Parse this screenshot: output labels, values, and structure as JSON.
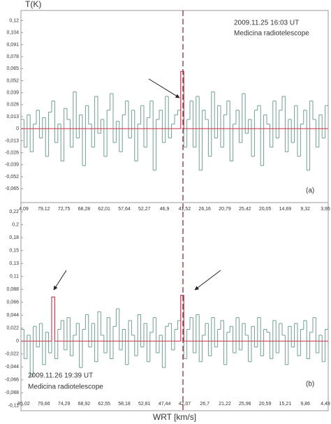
{
  "y_label": "T(K)",
  "x_label": "WRT [km/s]",
  "chart_data": [
    {
      "type": "line",
      "step": true,
      "annotations": [
        "2009.11.25   16:03 UT",
        "Medicina radiotelescope",
        "(a)"
      ],
      "x_labels": [
        "4,09",
        "79,12",
        "72,75",
        "68,28",
        "62,01",
        "57,64",
        "52,27",
        "46,9",
        "41,52",
        "26,16",
        "20,79",
        "25,42",
        "20,05",
        "14,69",
        "9,32",
        "3,95"
      ],
      "xlim": [
        0,
        100
      ],
      "ylim": [
        -0.08,
        0.128
      ],
      "yticks": [
        {
          "value": 0.117,
          "label": "0,12"
        },
        {
          "value": 0.104,
          "label": "0,104"
        },
        {
          "value": 0.091,
          "label": "0,091"
        },
        {
          "value": 0.078,
          "label": "0,078"
        },
        {
          "value": 0.065,
          "label": "0,065"
        },
        {
          "value": 0.052,
          "label": "0,052"
        },
        {
          "value": 0.039,
          "label": "0,039"
        },
        {
          "value": 0.026,
          "label": "0,026"
        },
        {
          "value": 0.013,
          "label": "0,013"
        },
        0,
        {
          "value": -0.013,
          "label": "-0,013"
        },
        {
          "value": -0.026,
          "label": "-0,026"
        },
        {
          "value": -0.039,
          "label": "-0,039"
        },
        {
          "value": -0.052,
          "label": "-0,052"
        },
        {
          "value": -0.065,
          "label": "-0,065"
        }
      ],
      "series": [
        {
          "color": "#6f9e94",
          "values": [
            0.01,
            -0.02,
            0.015,
            -0.025,
            0.005,
            0.02,
            -0.01,
            0.012,
            -0.03,
            0.018,
            0.03,
            -0.015,
            0.005,
            -0.035,
            0.022,
            0.01,
            -0.02,
            0.04,
            -0.01,
            0.015,
            -0.04,
            0.025,
            0.005,
            -0.02,
            0.035,
            -0.005,
            0.01,
            -0.03,
            0.02,
            0.038,
            -0.015,
            0.008,
            -0.025,
            0.015,
            0.03,
            -0.01,
            0.02,
            -0.035,
            0.005,
            0.025,
            -0.02,
            0.012,
            0.03,
            -0.045,
            0.01,
            0.02,
            -0.015,
            0.035,
            -0.01,
            0.005,
            0.015,
            0.02,
            0.062,
            -0.02,
            0.01,
            0.03,
            -0.02,
            0.035,
            -0.045,
            0.02,
            0.01,
            -0.03,
            0.04,
            -0.01,
            0.025,
            -0.02,
            0.015,
            0.03,
            -0.035,
            0.005,
            0.02,
            -0.015,
            0.038,
            -0.005,
            0.01,
            -0.03,
            0.02,
            0.025,
            -0.04,
            0.015,
            0.005,
            -0.02,
            0.03,
            -0.01,
            0.02,
            0.035,
            -0.025,
            0.01,
            -0.015,
            0.025,
            -0.03,
            0.005,
            0.02,
            -0.045,
            0.03,
            0.01,
            -0.02,
            0.015,
            -0.01,
            0.025
          ]
        },
        {
          "color": "#d0405a",
          "x": [
            0,
            52,
            52,
            53,
            53,
            100
          ],
          "values": [
            0,
            0,
            0.062,
            0.062,
            0,
            0
          ]
        }
      ]
    },
    {
      "type": "line",
      "step": true,
      "annotations": [
        "2009.11.26   19:39 UT",
        "Medicina radiotelescope",
        "(b)"
      ],
      "x_labels": [
        "85,02",
        "79,66",
        "74,29",
        "68,92",
        "62,55",
        "58,18",
        "52,81",
        "47,44",
        "42,07",
        "26,7",
        "21,22",
        "25,96",
        "20,59",
        "15,21",
        "9,86",
        "4,49"
      ],
      "xlim": [
        0,
        100
      ],
      "ylim": [
        -0.1185,
        0.2357
      ],
      "yticks": [
        {
          "value": 0.22,
          "label": "0,22"
        },
        {
          "value": 0.198,
          "label": "0,2"
        },
        {
          "value": 0.176,
          "label": "0,18"
        },
        {
          "value": 0.154,
          "label": "0,15"
        },
        {
          "value": 0.132,
          "label": "0,13"
        },
        {
          "value": 0.11,
          "label": "0,11"
        },
        {
          "value": 0.088,
          "label": "0,088"
        },
        {
          "value": 0.066,
          "label": "0,066"
        },
        {
          "value": 0.044,
          "label": "0,044"
        },
        {
          "value": 0.022,
          "label": "0,022"
        },
        0,
        {
          "value": -0.022,
          "label": "-0,022"
        },
        {
          "value": -0.044,
          "label": "-0,044"
        },
        {
          "value": -0.066,
          "label": "-0,066"
        },
        {
          "value": -0.088,
          "label": "-0,088"
        },
        {
          "value": -0.11,
          "label": "-0,11"
        }
      ],
      "series": [
        {
          "color": "#6f9e94",
          "values": [
            0.02,
            -0.03,
            0.01,
            -0.06,
            0.025,
            -0.01,
            0.03,
            -0.04,
            0.015,
            -0.02,
            0.075,
            -0.03,
            0.02,
            0.035,
            -0.015,
            0.04,
            -0.025,
            0.01,
            0.03,
            -0.045,
            0.02,
            0.045,
            -0.01,
            0.03,
            -0.035,
            0.05,
            0.01,
            -0.02,
            0.04,
            -0.03,
            0.025,
            0.055,
            -0.015,
            0.02,
            -0.04,
            0.035,
            0.01,
            -0.025,
            0.045,
            -0.01,
            0.03,
            -0.035,
            0.015,
            0.04,
            -0.02,
            0.01,
            -0.045,
            0.025,
            0.03,
            -0.015,
            0.02,
            0.035,
            0.078,
            -0.03,
            0.02,
            0.04,
            -0.02,
            0.045,
            -0.035,
            0.01,
            0.03,
            -0.025,
            0.04,
            -0.01,
            0.02,
            0.035,
            -0.04,
            0.015,
            0.025,
            -0.02,
            0.04,
            -0.015,
            0.03,
            0.01,
            -0.035,
            0.025,
            -0.01,
            0.04,
            -0.025,
            0.02,
            0.015,
            -0.03,
            0.035,
            -0.02,
            0.03,
            0.01,
            -0.04,
            0.025,
            -0.01,
            0.03,
            -0.025,
            0.02,
            0.035,
            -0.03,
            0.015,
            0.04,
            -0.02,
            0.01,
            -0.035,
            0.02
          ]
        },
        {
          "color": "#d0405a",
          "x": [
            0,
            10,
            10,
            11,
            11,
            52,
            52,
            53,
            53,
            100
          ],
          "values": [
            0,
            0,
            0.075,
            0.075,
            0,
            0,
            0.078,
            0.078,
            0,
            0
          ]
        }
      ]
    }
  ]
}
